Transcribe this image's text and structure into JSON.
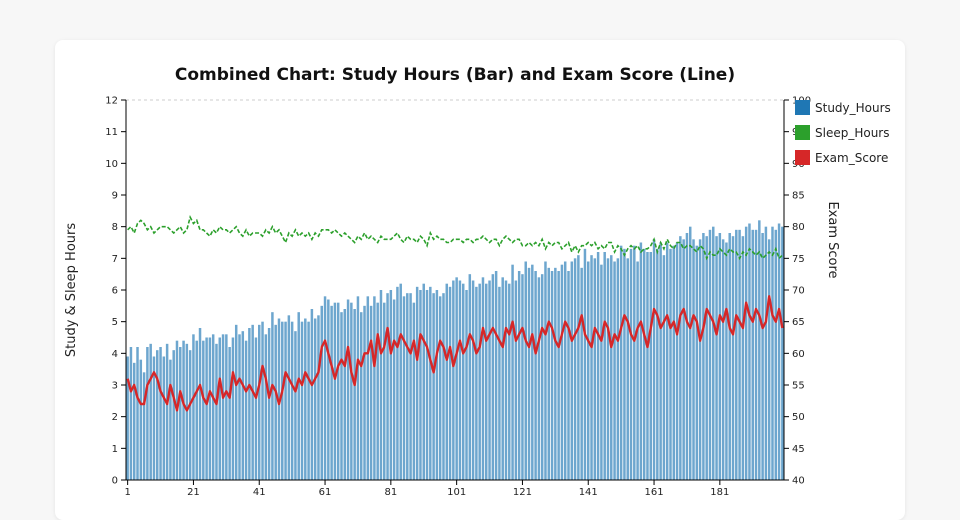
{
  "chart_data": {
    "type": "bar",
    "title": "Combined Chart: Study Hours (Bar) and Exam Score (Line)",
    "ylabel": "Study & Sleep Hours",
    "y2label": "Exam Score",
    "ylim": [
      0,
      12
    ],
    "y2lim": [
      40,
      100
    ],
    "yticks": [
      0,
      1,
      2,
      3,
      4,
      5,
      6,
      7,
      8,
      9,
      10,
      11,
      12
    ],
    "y2ticks": [
      40,
      45,
      50,
      55,
      60,
      65,
      70,
      75,
      80,
      85,
      90,
      95,
      100
    ],
    "xticks": [
      1,
      21,
      41,
      61,
      81,
      101,
      121,
      141,
      161,
      181
    ],
    "legend_position": "top-right",
    "series": [
      {
        "name": "Study_Hours",
        "type": "bar",
        "axis": "left",
        "color": "#1f77b4",
        "x": [
          1,
          2,
          3,
          4,
          5,
          6,
          7,
          8,
          9,
          10,
          11,
          12,
          13,
          14,
          15,
          16,
          17,
          18,
          19,
          20,
          21,
          22,
          23,
          24,
          25,
          26,
          27,
          28,
          29,
          30,
          31,
          32,
          33,
          34,
          35,
          36,
          37,
          38,
          39,
          40,
          41,
          42,
          43,
          44,
          45,
          46,
          47,
          48,
          49,
          50,
          51,
          52,
          53,
          54,
          55,
          56,
          57,
          58,
          59,
          60,
          61,
          62,
          63,
          64,
          65,
          66,
          67,
          68,
          69,
          70,
          71,
          72,
          73,
          74,
          75,
          76,
          77,
          78,
          79,
          80,
          81,
          82,
          83,
          84,
          85,
          86,
          87,
          88,
          89,
          90,
          91,
          92,
          93,
          94,
          95,
          96,
          97,
          98,
          99,
          100,
          101,
          102,
          103,
          104,
          105,
          106,
          107,
          108,
          109,
          110,
          111,
          112,
          113,
          114,
          115,
          116,
          117,
          118,
          119,
          120,
          121,
          122,
          123,
          124,
          125,
          126,
          127,
          128,
          129,
          130,
          131,
          132,
          133,
          134,
          135,
          136,
          137,
          138,
          139,
          140,
          141,
          142,
          143,
          144,
          145,
          146,
          147,
          148,
          149,
          150,
          151,
          152,
          153,
          154,
          155,
          156,
          157,
          158,
          159,
          160,
          161,
          162,
          163,
          164,
          165,
          166,
          167,
          168,
          169,
          170,
          171,
          172,
          173,
          174,
          175,
          176,
          177,
          178,
          179,
          180,
          181,
          182,
          183,
          184,
          185,
          186,
          187,
          188,
          189,
          190,
          191,
          192,
          193,
          194,
          195,
          196,
          197,
          198,
          199,
          200
        ],
        "values": [
          3.9,
          4.2,
          3.7,
          4.2,
          3.8,
          3.4,
          4.2,
          4.3,
          3.9,
          4.1,
          4.2,
          3.9,
          4.3,
          3.8,
          4.1,
          4.4,
          4.2,
          4.4,
          4.3,
          4.1,
          4.6,
          4.4,
          4.8,
          4.4,
          4.5,
          4.5,
          4.6,
          4.3,
          4.5,
          4.6,
          4.6,
          4.2,
          4.5,
          4.9,
          4.6,
          4.7,
          4.4,
          4.8,
          4.9,
          4.5,
          4.9,
          5.0,
          4.6,
          4.8,
          5.3,
          4.9,
          5.1,
          5.0,
          5.0,
          5.2,
          5.0,
          4.7,
          5.3,
          5.0,
          5.1,
          5.0,
          5.4,
          5.1,
          5.2,
          5.5,
          5.8,
          5.7,
          5.5,
          5.6,
          5.6,
          5.3,
          5.4,
          5.7,
          5.6,
          5.4,
          5.8,
          5.3,
          5.5,
          5.8,
          5.5,
          5.8,
          5.6,
          6.0,
          5.6,
          5.9,
          6.0,
          5.7,
          6.1,
          6.2,
          5.8,
          5.9,
          5.9,
          5.6,
          6.1,
          6.0,
          6.2,
          6.0,
          6.1,
          5.9,
          6.0,
          5.8,
          5.9,
          6.2,
          6.1,
          6.3,
          6.4,
          6.3,
          6.2,
          6.0,
          6.5,
          6.3,
          6.1,
          6.2,
          6.4,
          6.2,
          6.3,
          6.5,
          6.6,
          6.1,
          6.4,
          6.3,
          6.2,
          6.8,
          6.3,
          6.6,
          6.5,
          6.9,
          6.7,
          6.8,
          6.6,
          6.4,
          6.5,
          6.9,
          6.7,
          6.6,
          6.7,
          6.6,
          6.8,
          6.9,
          6.6,
          6.9,
          7.0,
          7.1,
          6.7,
          7.3,
          6.9,
          7.1,
          7.0,
          7.2,
          6.8,
          7.2,
          7.0,
          7.1,
          6.9,
          7.0,
          7.4,
          7.3,
          7.0,
          7.3,
          7.4,
          6.9,
          7.5,
          7.3,
          7.2,
          7.2,
          7.6,
          7.3,
          7.5,
          7.1,
          7.5,
          7.3,
          7.4,
          7.5,
          7.7,
          7.6,
          7.8,
          8.0,
          7.6,
          7.4,
          7.6,
          7.8,
          7.7,
          7.9,
          8.0,
          7.7,
          7.8,
          7.6,
          7.5,
          7.8,
          7.7,
          7.9,
          7.9,
          7.7,
          8.0,
          8.1,
          7.9,
          7.9,
          8.2,
          7.8,
          8.0,
          7.6,
          8.0,
          7.9,
          8.1,
          8.0
        ]
      },
      {
        "name": "Sleep_Hours",
        "type": "line",
        "dashed": true,
        "axis": "left",
        "color": "#2ca02c",
        "x": [
          1,
          2,
          3,
          4,
          5,
          6,
          7,
          8,
          9,
          10,
          11,
          12,
          13,
          14,
          15,
          16,
          17,
          18,
          19,
          20,
          21,
          22,
          23,
          24,
          25,
          26,
          27,
          28,
          29,
          30,
          31,
          32,
          33,
          34,
          35,
          36,
          37,
          38,
          39,
          40,
          41,
          42,
          43,
          44,
          45,
          46,
          47,
          48,
          49,
          50,
          51,
          52,
          53,
          54,
          55,
          56,
          57,
          58,
          59,
          60,
          61,
          62,
          63,
          64,
          65,
          66,
          67,
          68,
          69,
          70,
          71,
          72,
          73,
          74,
          75,
          76,
          77,
          78,
          79,
          80,
          81,
          82,
          83,
          84,
          85,
          86,
          87,
          88,
          89,
          90,
          91,
          92,
          93,
          94,
          95,
          96,
          97,
          98,
          99,
          100,
          101,
          102,
          103,
          104,
          105,
          106,
          107,
          108,
          109,
          110,
          111,
          112,
          113,
          114,
          115,
          116,
          117,
          118,
          119,
          120,
          121,
          122,
          123,
          124,
          125,
          126,
          127,
          128,
          129,
          130,
          131,
          132,
          133,
          134,
          135,
          136,
          137,
          138,
          139,
          140,
          141,
          142,
          143,
          144,
          145,
          146,
          147,
          148,
          149,
          150,
          151,
          152,
          153,
          154,
          155,
          156,
          157,
          158,
          159,
          160,
          161,
          162,
          163,
          164,
          165,
          166,
          167,
          168,
          169,
          170,
          171,
          172,
          173,
          174,
          175,
          176,
          177,
          178,
          179,
          180,
          181,
          182,
          183,
          184,
          185,
          186,
          187,
          188,
          189,
          190,
          191,
          192,
          193,
          194,
          195,
          196,
          197,
          198,
          199,
          200
        ],
        "values": [
          7.9,
          8.0,
          7.8,
          8.1,
          8.2,
          8.1,
          7.9,
          8.0,
          7.8,
          7.9,
          8.0,
          8.0,
          8.0,
          7.9,
          7.8,
          7.9,
          8.0,
          7.8,
          7.9,
          8.3,
          8.1,
          8.2,
          7.9,
          7.9,
          7.8,
          7.7,
          7.9,
          7.8,
          8.0,
          7.9,
          7.9,
          7.8,
          7.9,
          8.0,
          7.8,
          7.7,
          7.9,
          7.7,
          7.8,
          7.8,
          7.8,
          7.7,
          7.9,
          7.8,
          8.0,
          7.8,
          7.9,
          7.7,
          7.5,
          7.8,
          7.7,
          7.9,
          7.7,
          7.8,
          7.7,
          7.8,
          7.6,
          7.8,
          7.7,
          7.9,
          7.9,
          7.9,
          7.8,
          7.9,
          7.8,
          7.7,
          7.8,
          7.7,
          7.6,
          7.5,
          7.7,
          7.6,
          7.8,
          7.6,
          7.7,
          7.6,
          7.5,
          7.7,
          7.6,
          7.6,
          7.6,
          7.7,
          7.8,
          7.6,
          7.5,
          7.7,
          7.6,
          7.6,
          7.5,
          7.7,
          7.6,
          7.4,
          7.8,
          7.6,
          7.7,
          7.6,
          7.6,
          7.5,
          7.5,
          7.6,
          7.6,
          7.6,
          7.5,
          7.6,
          7.6,
          7.5,
          7.6,
          7.6,
          7.7,
          7.6,
          7.5,
          7.6,
          7.6,
          7.4,
          7.6,
          7.7,
          7.6,
          7.5,
          7.6,
          7.6,
          7.4,
          7.4,
          7.5,
          7.4,
          7.5,
          7.4,
          7.6,
          7.3,
          7.5,
          7.4,
          7.5,
          7.5,
          7.3,
          7.4,
          7.5,
          7.2,
          7.4,
          7.2,
          7.4,
          7.4,
          7.5,
          7.4,
          7.5,
          7.3,
          7.4,
          7.3,
          7.5,
          7.5,
          7.2,
          7.4,
          7.3,
          7.1,
          7.3,
          7.4,
          7.3,
          7.4,
          7.2,
          7.3,
          7.3,
          7.4,
          7.6,
          7.2,
          7.5,
          7.3,
          7.6,
          7.4,
          7.3,
          7.5,
          7.5,
          7.3,
          7.4,
          7.4,
          7.3,
          7.2,
          7.4,
          7.3,
          7.0,
          7.2,
          7.1,
          7.1,
          7.3,
          7.2,
          7.1,
          7.3,
          7.2,
          7.2,
          7.0,
          7.2,
          7.1,
          7.3,
          7.2,
          7.1,
          7.2,
          7.0,
          7.1,
          7.2,
          7.1,
          7.3,
          7.0,
          7.1
        ]
      },
      {
        "name": "Exam_Score",
        "type": "line",
        "axis": "right",
        "color": "#d62728",
        "x": [
          1,
          2,
          3,
          4,
          5,
          6,
          7,
          8,
          9,
          10,
          11,
          12,
          13,
          14,
          15,
          16,
          17,
          18,
          19,
          20,
          21,
          22,
          23,
          24,
          25,
          26,
          27,
          28,
          29,
          30,
          31,
          32,
          33,
          34,
          35,
          36,
          37,
          38,
          39,
          40,
          41,
          42,
          43,
          44,
          45,
          46,
          47,
          48,
          49,
          50,
          51,
          52,
          53,
          54,
          55,
          56,
          57,
          58,
          59,
          60,
          61,
          62,
          63,
          64,
          65,
          66,
          67,
          68,
          69,
          70,
          71,
          72,
          73,
          74,
          75,
          76,
          77,
          78,
          79,
          80,
          81,
          82,
          83,
          84,
          85,
          86,
          87,
          88,
          89,
          90,
          91,
          92,
          93,
          94,
          95,
          96,
          97,
          98,
          99,
          100,
          101,
          102,
          103,
          104,
          105,
          106,
          107,
          108,
          109,
          110,
          111,
          112,
          113,
          114,
          115,
          116,
          117,
          118,
          119,
          120,
          121,
          122,
          123,
          124,
          125,
          126,
          127,
          128,
          129,
          130,
          131,
          132,
          133,
          134,
          135,
          136,
          137,
          138,
          139,
          140,
          141,
          142,
          143,
          144,
          145,
          146,
          147,
          148,
          149,
          150,
          151,
          152,
          153,
          154,
          155,
          156,
          157,
          158,
          159,
          160,
          161,
          162,
          163,
          164,
          165,
          166,
          167,
          168,
          169,
          170,
          171,
          172,
          173,
          174,
          175,
          176,
          177,
          178,
          179,
          180,
          181,
          182,
          183,
          184,
          185,
          186,
          187,
          188,
          189,
          190,
          191,
          192,
          193,
          194,
          195,
          196,
          197,
          198,
          199,
          200
        ],
        "values": [
          56,
          54,
          55,
          53,
          52,
          52,
          55,
          56,
          57,
          56,
          54,
          53,
          52,
          55,
          53,
          51,
          54,
          52,
          51,
          52,
          53,
          54,
          55,
          53,
          52,
          54,
          53,
          52,
          56,
          53,
          54,
          53,
          57,
          55,
          56,
          55,
          54,
          55,
          54,
          53,
          55,
          58,
          56,
          53,
          55,
          54,
          52,
          54,
          57,
          56,
          55,
          54,
          56,
          55,
          57,
          56,
          55,
          56,
          57,
          61,
          62,
          60,
          58,
          56,
          58,
          59,
          58,
          61,
          57,
          55,
          59,
          58,
          60,
          60,
          62,
          58,
          63,
          60,
          61,
          64,
          60,
          62,
          61,
          63,
          62,
          61,
          60,
          62,
          59,
          63,
          62,
          61,
          59,
          57,
          60,
          62,
          61,
          59,
          61,
          58,
          60,
          62,
          60,
          61,
          63,
          62,
          60,
          61,
          64,
          62,
          63,
          64,
          63,
          62,
          61,
          64,
          63,
          65,
          62,
          63,
          64,
          62,
          61,
          63,
          60,
          62,
          64,
          63,
          65,
          64,
          62,
          61,
          63,
          65,
          64,
          62,
          63,
          64,
          66,
          63,
          62,
          61,
          64,
          63,
          62,
          65,
          64,
          61,
          63,
          62,
          64,
          66,
          65,
          63,
          62,
          64,
          65,
          63,
          61,
          64,
          67,
          66,
          64,
          65,
          66,
          64,
          65,
          63,
          66,
          67,
          65,
          64,
          66,
          65,
          62,
          64,
          67,
          66,
          65,
          63,
          66,
          65,
          67,
          64,
          63,
          66,
          65,
          64,
          68,
          66,
          65,
          67,
          66,
          64,
          65,
          69,
          66,
          65,
          67,
          64
        ]
      }
    ]
  }
}
